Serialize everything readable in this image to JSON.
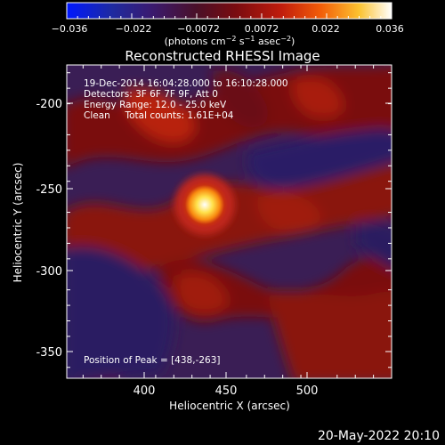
{
  "colorbar": {
    "ticks": [
      "−0.036",
      "−0.022",
      "−0.0072",
      "0.0072",
      "0.022",
      "0.036"
    ],
    "unit_prefix": "(photons cm",
    "unit_exp1": "−2",
    "unit_mid1": " s",
    "unit_exp2": "−1",
    "unit_mid2": " asec",
    "unit_exp3": "−2",
    "unit_suffix": ")"
  },
  "chart_data": {
    "type": "heatmap",
    "title": "Reconstructed RHESSI Image",
    "xlabel": "Heliocentric X (arcsec)",
    "ylabel": "Heliocentric Y (arcsec)",
    "xlim": [
      361,
      540
    ],
    "ylim": [
      -367,
      -165
    ],
    "xticks": [
      400,
      450,
      500
    ],
    "yticks": [
      -200,
      -250,
      -300,
      -350
    ],
    "color_range": [
      -0.036,
      0.036
    ],
    "colormap": "rhessi-bwr-hot",
    "peak": {
      "x": 438,
      "y": -263
    },
    "annotations": [
      "19-Dec-2014 16:04:28.000 to 16:10:28.000",
      "Detectors: 3F 6F 7F 9F, Att 0",
      "Energy Range: 12.0 - 25.0 keV",
      "Clean     Total counts: 1.61E+04",
      "Position of Peak = [438,-263]"
    ]
  },
  "footer": {
    "timestamp": "20-May-2022 20:10"
  }
}
